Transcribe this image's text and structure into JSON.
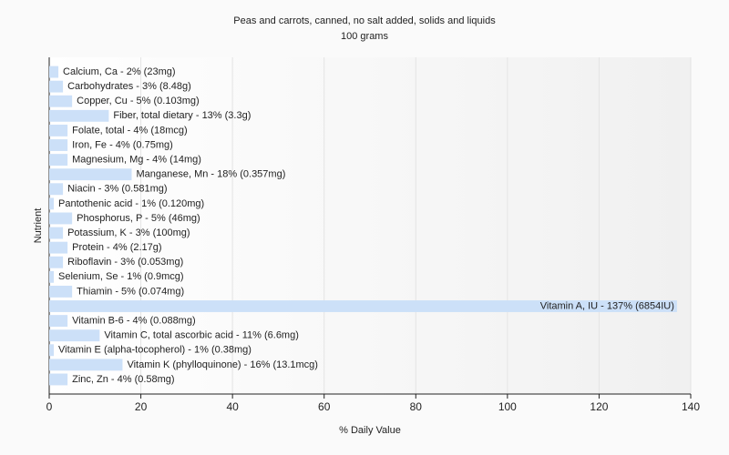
{
  "chart_data": {
    "type": "bar",
    "orientation": "horizontal",
    "title": "Peas and carrots, canned, no salt added, solids and liquids",
    "subtitle": "100 grams",
    "xlabel": "% Daily Value",
    "ylabel": "Nutrient",
    "values": [
      2,
      3,
      5,
      13,
      4,
      4,
      4,
      18,
      3,
      1,
      5,
      3,
      4,
      3,
      1,
      5,
      137,
      4,
      11,
      1,
      16,
      4
    ],
    "value_labels": [
      "Calcium, Ca - 2% (23mg)",
      "Carbohydrates - 3% (8.48g)",
      "Copper, Cu - 5% (0.103mg)",
      "Fiber, total dietary - 13% (3.3g)",
      "Folate, total - 4% (18mcg)",
      "Iron, Fe - 4% (0.75mg)",
      "Magnesium, Mg - 4% (14mg)",
      "Manganese, Mn - 18% (0.357mg)",
      "Niacin - 3% (0.581mg)",
      "Pantothenic acid - 1% (0.120mg)",
      "Phosphorus, P - 5% (46mg)",
      "Potassium, K - 3% (100mg)",
      "Protein - 4% (2.17g)",
      "Riboflavin - 3% (0.053mg)",
      "Selenium, Se - 1% (0.9mcg)",
      "Thiamin - 5% (0.074mg)",
      "Vitamin A, IU - 137% (6854IU)",
      "Vitamin B-6 - 4% (0.088mg)",
      "Vitamin C, total ascorbic acid - 11% (6.6mg)",
      "Vitamin E (alpha-tocopherol) - 1% (0.38mg)",
      "Vitamin K (phylloquinone) - 16% (13.1mcg)",
      "Zinc, Zn - 4% (0.58mg)"
    ],
    "color": "#cce0f8",
    "xlim": [
      0,
      140
    ],
    "xticks": [
      0,
      20,
      40,
      60,
      80,
      100,
      120,
      140
    ],
    "grid": true
  }
}
